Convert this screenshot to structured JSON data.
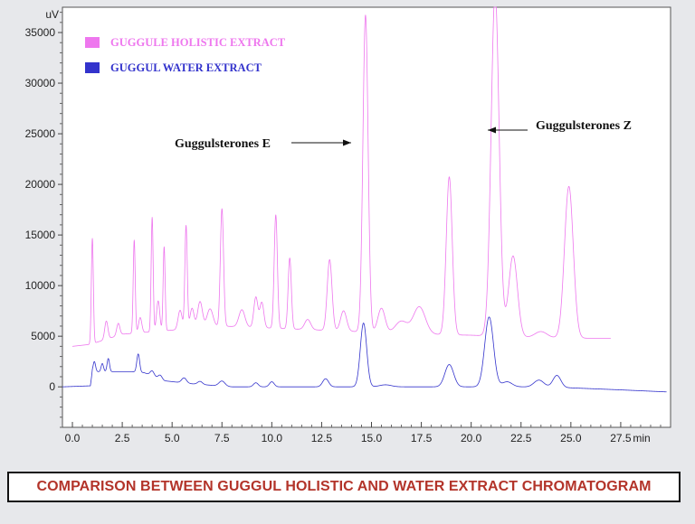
{
  "chart_data": {
    "type": "line",
    "ylabel": "uV",
    "xlabel": "min",
    "xlim": [
      -0.5,
      30.0
    ],
    "ylim": [
      -4000,
      37500
    ],
    "x_ticks": [
      0.0,
      2.5,
      5.0,
      7.5,
      10.0,
      12.5,
      15.0,
      17.5,
      20.0,
      22.5,
      25.0,
      27.5
    ],
    "x_tick_labels": [
      "0.0",
      "2.5",
      "5.0",
      "7.5",
      "10.0",
      "12.5",
      "15.0",
      "17.5",
      "20.0",
      "22.5",
      "25.0",
      "27.5"
    ],
    "y_ticks": [
      0,
      5000,
      10000,
      15000,
      20000,
      25000,
      30000,
      35000
    ],
    "y_tick_labels": [
      "0",
      "5000",
      "10000",
      "15000",
      "20000",
      "25000",
      "30000",
      "35000"
    ],
    "grid": false,
    "legend_position": "top-left",
    "series": [
      {
        "name": "GUGGULE HOLISTIC EXTRACT",
        "color": "#ee77ee",
        "baseline": [
          [
            0.0,
            4000
          ],
          [
            0.9,
            4200
          ],
          [
            2.5,
            5200
          ],
          [
            5.0,
            5600
          ],
          [
            7.5,
            6000
          ],
          [
            10.0,
            5800
          ],
          [
            12.5,
            5600
          ],
          [
            15.0,
            5400
          ],
          [
            17.5,
            5200
          ],
          [
            20.0,
            5100
          ],
          [
            22.5,
            4900
          ],
          [
            25.0,
            4800
          ],
          [
            27.0,
            4800
          ]
        ],
        "peaks": [
          {
            "t": 1.0,
            "h": 10400,
            "w": 0.05
          },
          {
            "t": 1.7,
            "h": 1800,
            "w": 0.08
          },
          {
            "t": 2.3,
            "h": 1200,
            "w": 0.08
          },
          {
            "t": 3.1,
            "h": 9200,
            "w": 0.05
          },
          {
            "t": 3.4,
            "h": 1500,
            "w": 0.08
          },
          {
            "t": 4.0,
            "h": 11300,
            "w": 0.05
          },
          {
            "t": 4.3,
            "h": 3000,
            "w": 0.08
          },
          {
            "t": 4.6,
            "h": 8300,
            "w": 0.05
          },
          {
            "t": 5.4,
            "h": 1900,
            "w": 0.1
          },
          {
            "t": 5.7,
            "h": 10200,
            "w": 0.06
          },
          {
            "t": 6.0,
            "h": 2000,
            "w": 0.1
          },
          {
            "t": 6.4,
            "h": 2600,
            "w": 0.12
          },
          {
            "t": 6.9,
            "h": 1800,
            "w": 0.15
          },
          {
            "t": 7.5,
            "h": 11600,
            "w": 0.08
          },
          {
            "t": 8.5,
            "h": 1700,
            "w": 0.15
          },
          {
            "t": 9.2,
            "h": 3000,
            "w": 0.1
          },
          {
            "t": 9.5,
            "h": 2500,
            "w": 0.1
          },
          {
            "t": 10.2,
            "h": 11200,
            "w": 0.08
          },
          {
            "t": 10.9,
            "h": 7000,
            "w": 0.08
          },
          {
            "t": 11.8,
            "h": 1000,
            "w": 0.15
          },
          {
            "t": 12.9,
            "h": 7000,
            "w": 0.12
          },
          {
            "t": 13.6,
            "h": 2000,
            "w": 0.15
          },
          {
            "t": 14.7,
            "h": 31300,
            "w": 0.13
          },
          {
            "t": 15.5,
            "h": 2400,
            "w": 0.18
          },
          {
            "t": 16.5,
            "h": 1200,
            "w": 0.3
          },
          {
            "t": 17.4,
            "h": 2700,
            "w": 0.3
          },
          {
            "t": 18.9,
            "h": 15600,
            "w": 0.15
          },
          {
            "t": 21.2,
            "h": 34000,
            "w": 0.2
          },
          {
            "t": 22.1,
            "h": 8000,
            "w": 0.22
          },
          {
            "t": 23.5,
            "h": 600,
            "w": 0.3
          },
          {
            "t": 24.9,
            "h": 15000,
            "w": 0.22
          }
        ]
      },
      {
        "name": "GUGGUL  WATER EXTRACT",
        "color": "#3333cc",
        "baseline": [
          [
            -0.5,
            0
          ],
          [
            0.9,
            100
          ],
          [
            1.0,
            1500
          ],
          [
            3.0,
            1500
          ],
          [
            3.6,
            1400
          ],
          [
            4.6,
            600
          ],
          [
            6.0,
            300
          ],
          [
            8.0,
            0
          ],
          [
            10.0,
            0
          ],
          [
            12.5,
            0
          ],
          [
            15.0,
            0
          ],
          [
            17.5,
            0
          ],
          [
            20.0,
            0
          ],
          [
            22.5,
            0
          ],
          [
            25.0,
            -100
          ],
          [
            27.5,
            -300
          ],
          [
            29.8,
            -500
          ]
        ],
        "peaks": [
          {
            "t": 1.1,
            "h": 1000,
            "w": 0.06
          },
          {
            "t": 1.5,
            "h": 800,
            "w": 0.06
          },
          {
            "t": 1.8,
            "h": 1300,
            "w": 0.06
          },
          {
            "t": 3.3,
            "h": 1800,
            "w": 0.07
          },
          {
            "t": 4.0,
            "h": 500,
            "w": 0.1
          },
          {
            "t": 4.4,
            "h": 400,
            "w": 0.1
          },
          {
            "t": 5.6,
            "h": 500,
            "w": 0.12
          },
          {
            "t": 6.4,
            "h": 300,
            "w": 0.12
          },
          {
            "t": 7.5,
            "h": 500,
            "w": 0.15
          },
          {
            "t": 9.2,
            "h": 400,
            "w": 0.12
          },
          {
            "t": 10.0,
            "h": 500,
            "w": 0.12
          },
          {
            "t": 12.7,
            "h": 800,
            "w": 0.15
          },
          {
            "t": 14.6,
            "h": 6300,
            "w": 0.16
          },
          {
            "t": 15.7,
            "h": 200,
            "w": 0.3
          },
          {
            "t": 18.9,
            "h": 2200,
            "w": 0.22
          },
          {
            "t": 20.9,
            "h": 6900,
            "w": 0.22
          },
          {
            "t": 21.8,
            "h": 500,
            "w": 0.25
          },
          {
            "t": 23.4,
            "h": 700,
            "w": 0.25
          },
          {
            "t": 24.3,
            "h": 1200,
            "w": 0.2
          }
        ]
      }
    ],
    "annotations": [
      {
        "text": "Guggulsterones E",
        "arrow_direction": "right",
        "target_x": 14.7,
        "target_y": 25000
      },
      {
        "text": "Guggulsterones Z",
        "arrow_direction": "left",
        "target_x": 21.1,
        "target_y": 26200
      }
    ]
  },
  "caption": "COMPARISON BETWEEN GUGGUL HOLISTIC AND WATER  EXTRACT CHROMATOGRAM"
}
